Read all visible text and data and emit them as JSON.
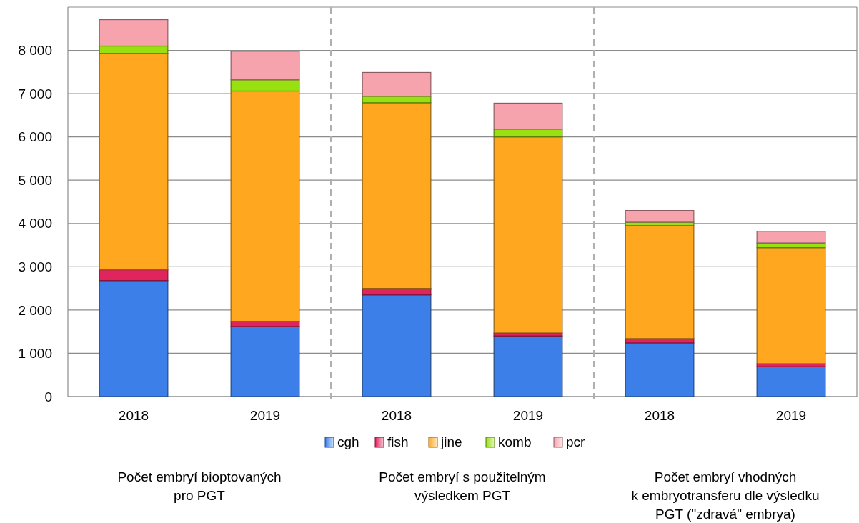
{
  "chart_data": {
    "type": "bar",
    "stacked": true,
    "categories": [
      "2018",
      "2019",
      "2018",
      "2019",
      "2018",
      "2019"
    ],
    "series": [
      {
        "name": "cgh",
        "color": "#3d7fe8",
        "values": [
          2680,
          1620,
          2350,
          1400,
          1240,
          690
        ]
      },
      {
        "name": "fish",
        "color": "#e0245e",
        "values": [
          250,
          120,
          150,
          70,
          100,
          70
        ]
      },
      {
        "name": "jine",
        "color": "#ffa81f",
        "values": [
          5000,
          5320,
          4290,
          4530,
          2610,
          2680
        ]
      },
      {
        "name": "komb",
        "color": "#99e010",
        "values": [
          170,
          260,
          150,
          180,
          80,
          110
        ]
      },
      {
        "name": "pcr",
        "color": "#f7a3ad",
        "values": [
          610,
          660,
          550,
          600,
          270,
          270
        ]
      }
    ],
    "ylim": [
      0,
      9000
    ],
    "yticks": [
      {
        "value": 0,
        "label": "0"
      },
      {
        "value": 1000,
        "label": "1 000"
      },
      {
        "value": 2000,
        "label": "2 000"
      },
      {
        "value": 3000,
        "label": "3 000"
      },
      {
        "value": 4000,
        "label": "4 000"
      },
      {
        "value": 5000,
        "label": "5 000"
      },
      {
        "value": 6000,
        "label": "6 000"
      },
      {
        "value": 7000,
        "label": "7 000"
      },
      {
        "value": 8000,
        "label": "8 000"
      }
    ],
    "grid": "y",
    "legend": "bottom",
    "annotations": [
      "Počet embryí bioptovaných\npro PGT",
      "Počet embryí s použitelným\nvýsledkem PGT",
      "Počet embryí vhodných\nk embryotransferu dle výsledku\nPGT (\"zdravá\" embrya)"
    ]
  }
}
